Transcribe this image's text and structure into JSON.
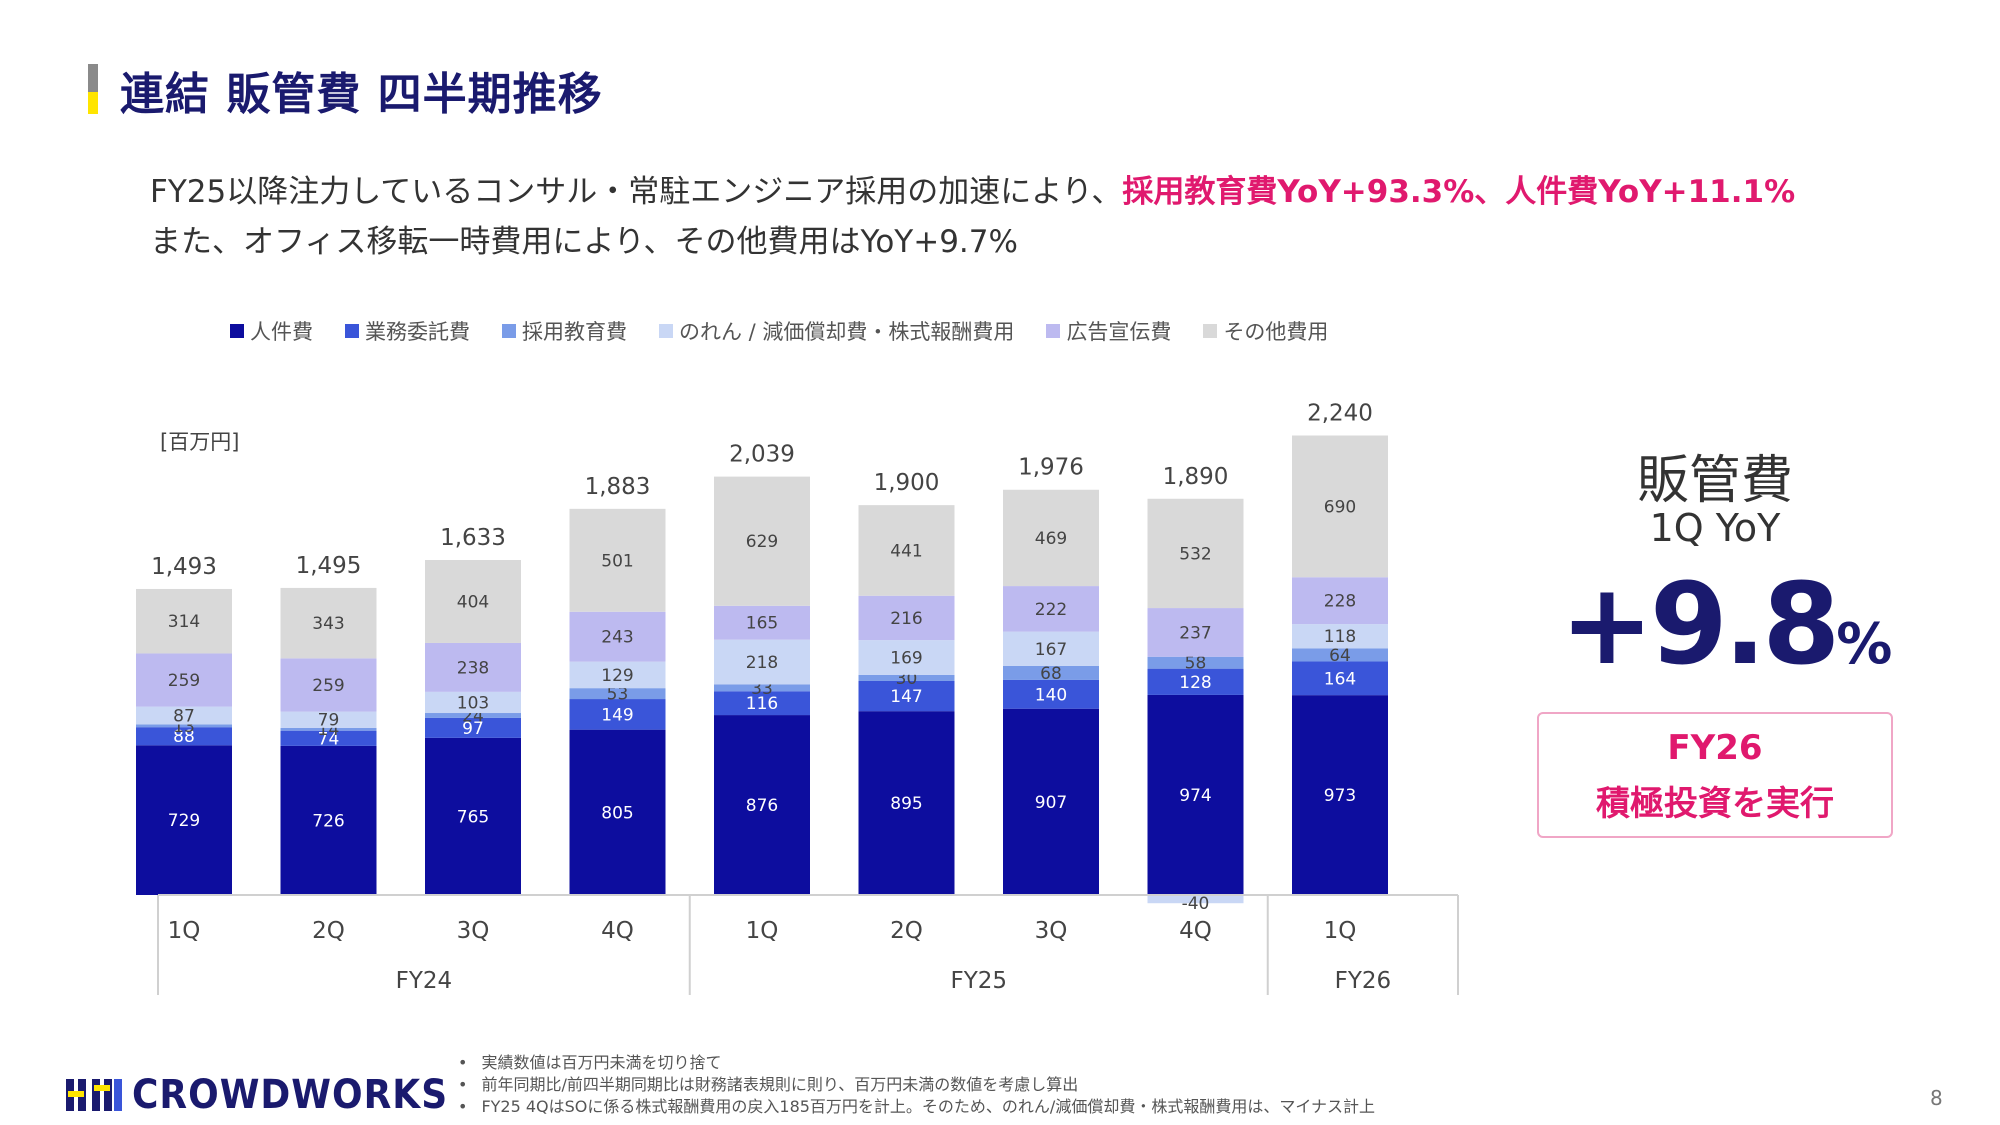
{
  "title": "連結 販管費 四半期推移",
  "lead": {
    "line1_plain": "FY25以降注力しているコンサル・常駐エンジニア採用の加速により、",
    "line1_highlight": "採用教育費YoY+93.3%、人件費YoY+11.1%",
    "line2": "また、オフィス移転一時費用により、その他費用はYoY+9.7%"
  },
  "unit_label": "[百万円]",
  "legend": [
    {
      "label": "人件費",
      "color": "#0d0d9e"
    },
    {
      "label": "業務委託費",
      "color": "#3a55d9"
    },
    {
      "label": "採用教育費",
      "color": "#7a9ce8"
    },
    {
      "label": "のれん / 減価償却費・株式報酬費用",
      "color": "#c9d7f5"
    },
    {
      "label": "広告宣伝費",
      "color": "#bdbaf0"
    },
    {
      "label": "その他費用",
      "color": "#d9d9d9"
    }
  ],
  "chart_data": {
    "type": "bar",
    "stacked": true,
    "unit": "百万円",
    "categories": [
      "1Q",
      "2Q",
      "3Q",
      "4Q",
      "1Q",
      "2Q",
      "3Q",
      "4Q",
      "1Q"
    ],
    "groups": [
      {
        "label": "FY24",
        "count": 4
      },
      {
        "label": "FY25",
        "count": 4
      },
      {
        "label": "FY26",
        "count": 1
      }
    ],
    "series": [
      {
        "name": "人件費",
        "values": [
          729,
          726,
          765,
          805,
          876,
          895,
          907,
          974,
          973
        ]
      },
      {
        "name": "業務委託費",
        "values": [
          88,
          74,
          97,
          149,
          116,
          147,
          140,
          128,
          164
        ]
      },
      {
        "name": "採用教育費",
        "values": [
          13,
          14,
          24,
          53,
          33,
          30,
          68,
          58,
          64
        ]
      },
      {
        "name": "のれん / 減価償却費・株式報酬費用",
        "values": [
          87,
          79,
          103,
          129,
          218,
          169,
          167,
          -40,
          118
        ]
      },
      {
        "name": "広告宣伝費",
        "values": [
          259,
          259,
          238,
          243,
          165,
          216,
          222,
          237,
          228
        ]
      },
      {
        "name": "その他費用",
        "values": [
          314,
          343,
          404,
          501,
          629,
          441,
          469,
          532,
          690
        ]
      }
    ],
    "totals": [
      "1,493",
      "1,495",
      "1,633",
      "1,883",
      "2,039",
      "1,900",
      "1,976",
      "1,890",
      "2,240"
    ]
  },
  "kpi": {
    "title": "販管費",
    "subtitle": "1Q YoY",
    "value": "+9.8",
    "value_unit": "%"
  },
  "invest": {
    "line1": "FY26",
    "line2": "積極投資を実行"
  },
  "logo_text": "CROWDWORKS",
  "notes": [
    "実績数値は百万円未満を切り捨て",
    "前年同期比/前四半期同期比は財務諸表規則に則り、百万円未満の数値を考慮し算出",
    "FY25 4QはSOに係る株式報酬費用の戻入185百万円を計上。そのため、のれん/減価償却費・株式報酬費用は、マイナス計上"
  ],
  "page_number": "8"
}
